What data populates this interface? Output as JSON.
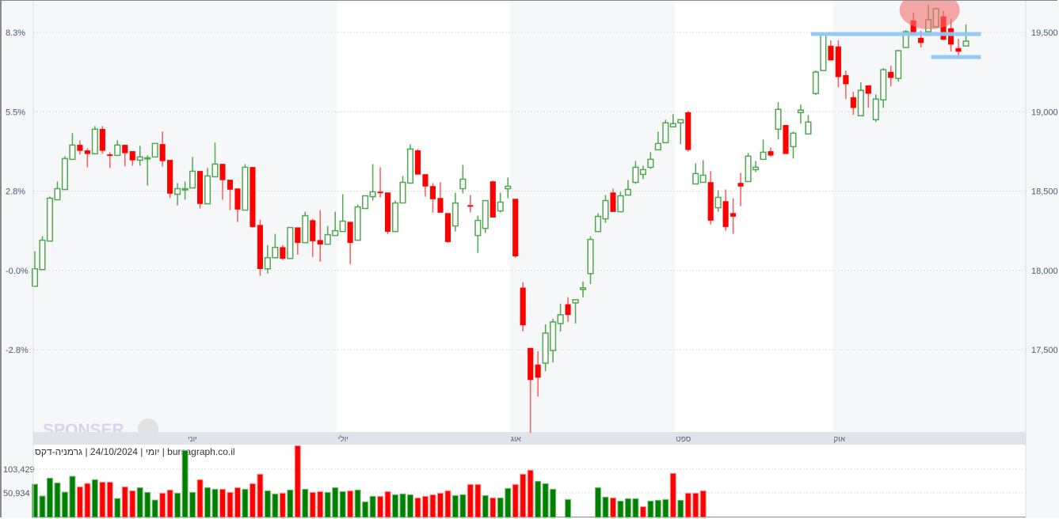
{
  "chart_data": {
    "type": "candlestick",
    "info_line": "יומי | 24/10/2024 | גרמניה-דקס | bursagraph.co.il",
    "watermark": "SPONSER",
    "price_axis": {
      "ticks": [
        19500,
        19000,
        18500,
        18000,
        17500
      ],
      "labels": [
        "19,500",
        "19,000",
        "18,500",
        "18,000",
        "17,500"
      ],
      "position": "right"
    },
    "percent_axis": {
      "labels": [
        "8.3%",
        "5.5%",
        "2.8%",
        "-0.0%",
        "-2.8%"
      ],
      "values": [
        19500,
        19000,
        18500,
        18000,
        17500
      ],
      "position": "left"
    },
    "volume_axis": {
      "ticks": [
        103429,
        50934
      ],
      "labels": [
        "103,429",
        "50,934"
      ]
    },
    "months": [
      {
        "label": "יוני",
        "index": 21
      },
      {
        "label": "יולי",
        "index": 41
      },
      {
        "label": "אוג",
        "index": 64
      },
      {
        "label": "ספט",
        "index": 86
      },
      {
        "label": "אוק",
        "index": 107
      }
    ],
    "colors": {
      "up": "#2e9a2e",
      "down": "#ff0000",
      "up_volume": "#008000",
      "down_volume": "#ff0000",
      "level_line": "#90c6f6",
      "highlight": "#f47070"
    },
    "levels": [
      {
        "value": 19490,
        "from_index": 104,
        "to_index": 126
      },
      {
        "value": 19345,
        "from_index": 120,
        "to_index": 126
      }
    ],
    "highlight_ellipse": {
      "center_index": 120,
      "center_value": 19640
    },
    "ohlc_order": [
      "open",
      "high",
      "low",
      "close"
    ],
    "candles": [
      [
        17900,
        18120,
        17900,
        18010
      ],
      [
        18005,
        18215,
        18005,
        18190
      ],
      [
        18185,
        18465,
        18185,
        18455
      ],
      [
        18445,
        18560,
        18445,
        18515
      ],
      [
        18510,
        18720,
        18510,
        18705
      ],
      [
        18700,
        18865,
        18700,
        18790
      ],
      [
        18790,
        18820,
        18730,
        18755
      ],
      [
        18755,
        18770,
        18650,
        18735
      ],
      [
        18735,
        18910,
        18735,
        18890
      ],
      [
        18890,
        18910,
        18735,
        18755
      ],
      [
        18730,
        18745,
        18645,
        18725
      ],
      [
        18725,
        18820,
        18725,
        18790
      ],
      [
        18790,
        18790,
        18655,
        18740
      ],
      [
        18750,
        18750,
        18660,
        18695
      ],
      [
        18695,
        18785,
        18660,
        18715
      ],
      [
        18705,
        18725,
        18535,
        18710
      ],
      [
        18715,
        18800,
        18715,
        18800
      ],
      [
        18795,
        18875,
        18655,
        18690
      ],
      [
        18695,
        18695,
        18455,
        18485
      ],
      [
        18480,
        18550,
        18410,
        18515
      ],
      [
        18510,
        18560,
        18445,
        18515
      ],
      [
        18520,
        18715,
        18520,
        18625
      ],
      [
        18625,
        18625,
        18390,
        18420
      ],
      [
        18420,
        18645,
        18420,
        18595
      ],
      [
        18590,
        18805,
        18590,
        18670
      ],
      [
        18670,
        18670,
        18445,
        18570
      ],
      [
        18570,
        18570,
        18380,
        18510
      ],
      [
        18515,
        18515,
        18305,
        18385
      ],
      [
        18380,
        18670,
        18380,
        18650
      ],
      [
        18650,
        18650,
        18270,
        18275
      ],
      [
        18285,
        18320,
        17965,
        18010
      ],
      [
        18010,
        18160,
        17980,
        18080
      ],
      [
        18080,
        18230,
        18080,
        18145
      ],
      [
        18145,
        18160,
        18065,
        18075
      ],
      [
        18075,
        18270,
        18075,
        18270
      ],
      [
        18270,
        18270,
        18100,
        18175
      ],
      [
        18175,
        18370,
        18175,
        18345
      ],
      [
        18315,
        18325,
        18085,
        18185
      ],
      [
        18190,
        18380,
        18055,
        18165
      ],
      [
        18165,
        18280,
        18165,
        18225
      ],
      [
        18220,
        18370,
        18220,
        18250
      ],
      [
        18245,
        18480,
        18245,
        18310
      ],
      [
        18305,
        18305,
        18040,
        18175
      ],
      [
        18190,
        18415,
        18190,
        18400
      ],
      [
        18390,
        18470,
        18390,
        18470
      ],
      [
        18465,
        18670,
        18440,
        18495
      ],
      [
        18495,
        18650,
        18460,
        18490
      ],
      [
        18490,
        18490,
        18230,
        18245
      ],
      [
        18245,
        18440,
        18245,
        18425
      ],
      [
        18425,
        18595,
        18425,
        18555
      ],
      [
        18550,
        18795,
        18550,
        18765
      ],
      [
        18755,
        18765,
        18605,
        18605
      ],
      [
        18605,
        18605,
        18465,
        18530
      ],
      [
        18530,
        18550,
        18365,
        18450
      ],
      [
        18455,
        18555,
        18365,
        18365
      ],
      [
        18360,
        18360,
        18175,
        18180
      ],
      [
        18280,
        18490,
        18245,
        18425
      ],
      [
        18515,
        18665,
        18485,
        18575
      ],
      [
        18410,
        18475,
        18365,
        18405
      ],
      [
        18220,
        18345,
        18110,
        18315
      ],
      [
        18265,
        18440,
        18235,
        18440
      ],
      [
        18560,
        18565,
        18335,
        18335
      ],
      [
        18375,
        18490,
        18365,
        18430
      ],
      [
        18515,
        18585,
        18455,
        18530
      ],
      [
        18450,
        18450,
        18080,
        18090
      ],
      [
        17890,
        17925,
        17615,
        17655
      ],
      [
        17510,
        17510,
        16975,
        17310
      ],
      [
        17405,
        17490,
        17205,
        17325
      ],
      [
        17415,
        17660,
        17365,
        17605
      ],
      [
        17495,
        17695,
        17420,
        17675
      ],
      [
        17665,
        17790,
        17615,
        17720
      ],
      [
        17785,
        17830,
        17675,
        17720
      ],
      [
        17795,
        17815,
        17665,
        17815
      ],
      [
        17880,
        17930,
        17830,
        17890
      ],
      [
        17980,
        18215,
        17915,
        18195
      ],
      [
        18245,
        18360,
        18245,
        18340
      ],
      [
        18325,
        18475,
        18300,
        18440
      ],
      [
        18490,
        18515,
        18370,
        18370
      ],
      [
        18370,
        18495,
        18370,
        18470
      ],
      [
        18475,
        18570,
        18475,
        18510
      ],
      [
        18555,
        18690,
        18545,
        18650
      ],
      [
        18605,
        18660,
        18575,
        18635
      ],
      [
        18650,
        18745,
        18640,
        18700
      ],
      [
        18760,
        18875,
        18760,
        18800
      ],
      [
        18805,
        18950,
        18805,
        18930
      ],
      [
        18905,
        18985,
        18905,
        18925
      ],
      [
        18930,
        18950,
        18795,
        18950
      ],
      [
        18995,
        19005,
        18750,
        18760
      ],
      [
        18545,
        18675,
        18545,
        18610
      ],
      [
        18555,
        18695,
        18555,
        18600
      ],
      [
        18555,
        18625,
        18290,
        18315
      ],
      [
        18395,
        18505,
        18370,
        18460
      ],
      [
        18435,
        18510,
        18250,
        18275
      ],
      [
        18360,
        18455,
        18230,
        18340
      ],
      [
        18550,
        18615,
        18405,
        18530
      ],
      [
        18560,
        18740,
        18560,
        18720
      ],
      [
        18635,
        18690,
        18620,
        18650
      ],
      [
        18700,
        18825,
        18700,
        18745
      ],
      [
        18750,
        18775,
        18715,
        18725
      ],
      [
        18890,
        19060,
        18825,
        19015
      ],
      [
        18915,
        18915,
        18735,
        18735
      ],
      [
        18780,
        18875,
        18705,
        18865
      ],
      [
        18995,
        19045,
        18925,
        19010
      ],
      [
        18860,
        18980,
        18860,
        18935
      ],
      [
        19115,
        19260,
        19105,
        19250
      ],
      [
        19260,
        19490,
        19260,
        19485
      ],
      [
        19415,
        19450,
        19325,
        19325
      ],
      [
        19410,
        19450,
        19155,
        19220
      ],
      [
        19230,
        19260,
        19080,
        19175
      ],
      [
        19090,
        19125,
        18980,
        19025
      ],
      [
        18975,
        19185,
        18975,
        19135
      ],
      [
        19165,
        19165,
        19025,
        19115
      ],
      [
        18950,
        19110,
        18935,
        19080
      ],
      [
        19075,
        19275,
        19025,
        19265
      ],
      [
        19250,
        19290,
        19160,
        19215
      ],
      [
        19210,
        19390,
        19190,
        19385
      ],
      [
        19405,
        19515,
        19405,
        19505
      ],
      [
        19575,
        19625,
        19485,
        19485
      ],
      [
        19465,
        19510,
        19405,
        19435
      ],
      [
        19505,
        19675,
        19505,
        19580
      ],
      [
        19535,
        19650,
        19535,
        19650
      ],
      [
        19600,
        19635,
        19455,
        19455
      ],
      [
        19525,
        19585,
        19380,
        19425
      ],
      [
        19400,
        19460,
        19335,
        19380
      ],
      [
        19415,
        19550,
        19415,
        19445
      ]
    ],
    "volume": [
      70000,
      43750,
      83400,
      72900,
      52500,
      87500,
      64200,
      71750,
      80000,
      74600,
      74600,
      38500,
      64200,
      55400,
      62400,
      51900,
      35000,
      50200,
      57200,
      50200,
      144700,
      51900,
      80000,
      62400,
      58900,
      58900,
      51900,
      62400,
      58900,
      71200,
      92200,
      55400,
      48400,
      50200,
      57200,
      155200,
      58900,
      51900,
      53700,
      51900,
      62400,
      53700,
      55400,
      57200,
      31000,
      43200,
      43200,
      53700,
      46700,
      48400,
      46700,
      39700,
      43200,
      46700,
      50200,
      55400,
      45000,
      46700,
      69400,
      69400,
      45000,
      39700,
      39700,
      60700,
      69400,
      92200,
      101000,
      76500,
      71200,
      59000,
      null,
      36200,
      null,
      null,
      null,
      62400,
      41500,
      39700,
      32700,
      38000,
      38000,
      20400,
      32700,
      34500,
      36200,
      94000,
      34500,
      50200,
      50200,
      55400
    ],
    "volume_up": [
      1,
      1,
      1,
      1,
      1,
      1,
      0,
      0,
      1,
      0,
      0,
      1,
      0,
      0,
      1,
      1,
      1,
      0,
      0,
      1,
      1,
      1,
      0,
      1,
      1,
      0,
      0,
      0,
      1,
      0,
      0,
      1,
      1,
      0,
      1,
      0,
      1,
      0,
      0,
      1,
      1,
      1,
      0,
      1,
      1,
      1,
      0,
      0,
      1,
      1,
      1,
      0,
      0,
      0,
      0,
      0,
      1,
      1,
      0,
      0,
      1,
      0,
      1,
      1,
      0,
      0,
      0,
      1,
      1,
      1,
      0,
      1,
      0,
      0,
      0,
      1,
      1,
      0,
      1,
      1,
      1,
      0,
      1,
      1,
      1,
      0,
      1,
      0,
      0,
      0
    ]
  }
}
